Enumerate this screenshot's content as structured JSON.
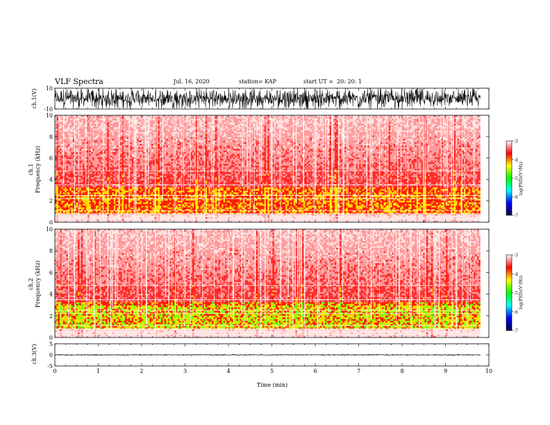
{
  "header": {
    "title": "VLF Spectra",
    "date": "Jul. 16, 2020",
    "station": "station= KAP",
    "start": "start UT =  20: 20: 1"
  },
  "chart_data": {
    "type": "heatmap",
    "x_axis": {
      "label": "Time (min)",
      "range": [
        0,
        10
      ],
      "ticks": [
        "0",
        "1",
        "2",
        "3",
        "4",
        "5",
        "6",
        "7",
        "8",
        "9",
        "10"
      ]
    },
    "panels": [
      {
        "name": "ch.1(V)",
        "type": "line",
        "ylabel": "ch.1(V)",
        "ylim": [
          -10,
          10
        ],
        "yticks": [
          "10",
          "-10"
        ],
        "data_end_min": 9.8
      },
      {
        "name": "ch.1 spectrogram",
        "type": "heatmap",
        "ylabel": "ch.1\nFrequency (kHz)",
        "ylim": [
          0,
          10
        ],
        "yticks": [
          "0",
          "2",
          "4",
          "6",
          "8",
          "10"
        ],
        "colorbar": {
          "label": "log(PSD)(V²/Hz)",
          "range": [
            -7,
            -3
          ],
          "ticks": [
            "-3",
            "-4",
            "-5",
            "-6",
            "-7"
          ],
          "colors": [
            "#ffffff",
            "#ff0000",
            "#ffff00",
            "#00ff00",
            "#00ffff",
            "#0000ff",
            "#000040"
          ]
        }
      },
      {
        "name": "ch.2 spectrogram",
        "type": "heatmap",
        "ylabel": "ch.2\nFrequency (kHz)",
        "ylim": [
          0,
          10
        ],
        "yticks": [
          "0",
          "2",
          "4",
          "6",
          "8",
          "10"
        ],
        "colorbar": {
          "label": "log(PSD)(V²/Hz)",
          "range": [
            -7,
            -3
          ],
          "ticks": [
            "-3",
            "-4",
            "-5",
            "-6",
            "-7"
          ],
          "colors": [
            "#ffffff",
            "#ff0000",
            "#ffff00",
            "#00ff00",
            "#00ffff",
            "#0000ff",
            "#000040"
          ]
        }
      },
      {
        "name": "ch.3(V)",
        "type": "line",
        "ylabel": "ch.3(V)",
        "ylim": [
          -5,
          5
        ],
        "yticks": [
          "5",
          "0",
          "-5"
        ],
        "data_end_min": 9.8
      }
    ]
  },
  "labels": {
    "ch1_wave": "ch.1(V)",
    "ch1_spec_a": "ch.1",
    "ch1_spec_b": "Frequency (kHz)",
    "ch2_spec_a": "ch.2",
    "ch2_spec_b": "Frequency (kHz)",
    "ch3_wave": "ch.3(V)",
    "colorbar_label": "log(PSD)(V²/Hz)",
    "xlabel": "Time (min)"
  }
}
